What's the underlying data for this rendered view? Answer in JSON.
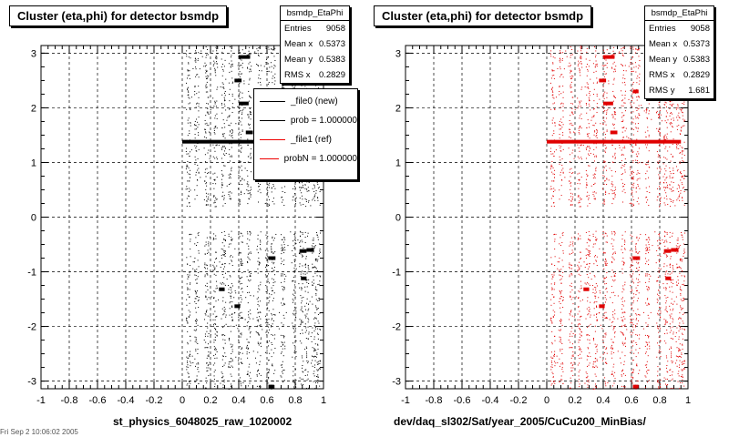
{
  "footer_text": "Fri Sep 2 10:06:02 2005",
  "chart_data": [
    {
      "type": "scatter",
      "title": "Cluster (eta,phi) for detector bsmdp",
      "xlabel": "st_physics_6048025_raw_1020002",
      "ylabel": "",
      "xlim": [
        -1,
        1
      ],
      "ylim": [
        -3.14,
        3.14
      ],
      "grid": true,
      "color": "#000000",
      "xticks": [
        "-1",
        "-0.8",
        "-0.6",
        "-0.4",
        "-0.2",
        "0",
        "0.2",
        "0.4",
        "0.6",
        "0.8",
        "1"
      ],
      "yticks": [
        "-3",
        "-2",
        "-1",
        "0",
        "1",
        "2",
        "3"
      ],
      "stats": {
        "header": "bsmdp_EtaPhi",
        "rows": [
          {
            "label": "Entries",
            "value": "9058"
          },
          {
            "label": "Mean x",
            "value": "0.5373"
          },
          {
            "label": "Mean y",
            "value": "0.5383"
          },
          {
            "label": "RMS x",
            "value": "0.2829"
          }
        ]
      },
      "legend": [
        {
          "label": "_file0 (new)",
          "color": "#000000"
        },
        {
          "label": "prob = 1.000000",
          "color": "#000000"
        },
        {
          "label": "_file1 (ref)",
          "color": "#e00000"
        },
        {
          "label": "probN = 1.000000",
          "color": "#e00000"
        }
      ],
      "x_columns": [
        0.04,
        0.1,
        0.17,
        0.23,
        0.29,
        0.34,
        0.41,
        0.47,
        0.54,
        0.6,
        0.64,
        0.71,
        0.79,
        0.84,
        0.88,
        0.93,
        0.96
      ],
      "clusters": [
        {
          "x": [
            0.0,
            0.95
          ],
          "y": 1.38
        },
        {
          "x": [
            0.4,
            0.48
          ],
          "y": 2.93
        },
        {
          "x": [
            0.37,
            0.42
          ],
          "y": 2.5
        },
        {
          "x": [
            0.4,
            0.47
          ],
          "y": 2.08
        },
        {
          "x": [
            0.61,
            0.65
          ],
          "y": 2.3
        },
        {
          "x": [
            0.45,
            0.5
          ],
          "y": 1.55
        },
        {
          "x": [
            0.26,
            0.3
          ],
          "y": -1.32
        },
        {
          "x": [
            0.37,
            0.41
          ],
          "y": -1.63
        },
        {
          "x": [
            0.61,
            0.66
          ],
          "y": -0.75
        },
        {
          "x": [
            0.83,
            0.88
          ],
          "y": -0.62
        },
        {
          "x": [
            0.88,
            0.93
          ],
          "y": -0.6
        },
        {
          "x": [
            0.84,
            0.88
          ],
          "y": -1.12
        },
        {
          "x": [
            0.61,
            0.65
          ],
          "y": -3.1
        }
      ]
    },
    {
      "type": "scatter",
      "title": "Cluster (eta,phi) for detector bsmdp",
      "xlabel": "dev/daq_sl302/Sat/year_2005/CuCu200_MinBias/",
      "ylabel": "",
      "xlim": [
        -1,
        1
      ],
      "ylim": [
        -3.14,
        3.14
      ],
      "grid": true,
      "color": "#e00000",
      "xticks": [
        "-1",
        "-0.8",
        "-0.6",
        "-0.4",
        "-0.2",
        "0",
        "0.2",
        "0.4",
        "0.6",
        "0.8",
        "1"
      ],
      "yticks": [
        "-3",
        "-2",
        "-1",
        "0",
        "1",
        "2",
        "3"
      ],
      "stats": {
        "header": "bsmdp_EtaPhi",
        "rows": [
          {
            "label": "Entries",
            "value": "9058"
          },
          {
            "label": "Mean x",
            "value": "0.5373"
          },
          {
            "label": "Mean y",
            "value": "0.5383"
          },
          {
            "label": "RMS x",
            "value": "0.2829"
          },
          {
            "label": "RMS y",
            "value": "1.681"
          }
        ]
      },
      "x_columns": [
        0.04,
        0.1,
        0.17,
        0.23,
        0.29,
        0.34,
        0.41,
        0.47,
        0.54,
        0.6,
        0.64,
        0.71,
        0.79,
        0.84,
        0.88,
        0.93,
        0.96
      ],
      "clusters": [
        {
          "x": [
            0.0,
            0.95
          ],
          "y": 1.38
        },
        {
          "x": [
            0.4,
            0.48
          ],
          "y": 2.93
        },
        {
          "x": [
            0.37,
            0.42
          ],
          "y": 2.5
        },
        {
          "x": [
            0.4,
            0.47
          ],
          "y": 2.08
        },
        {
          "x": [
            0.61,
            0.65
          ],
          "y": 2.3
        },
        {
          "x": [
            0.45,
            0.5
          ],
          "y": 1.55
        },
        {
          "x": [
            0.26,
            0.3
          ],
          "y": -1.32
        },
        {
          "x": [
            0.37,
            0.41
          ],
          "y": -1.63
        },
        {
          "x": [
            0.61,
            0.66
          ],
          "y": -0.75
        },
        {
          "x": [
            0.83,
            0.88
          ],
          "y": -0.62
        },
        {
          "x": [
            0.88,
            0.93
          ],
          "y": -0.6
        },
        {
          "x": [
            0.84,
            0.88
          ],
          "y": -1.12
        },
        {
          "x": [
            0.61,
            0.65
          ],
          "y": -3.1
        }
      ]
    }
  ]
}
